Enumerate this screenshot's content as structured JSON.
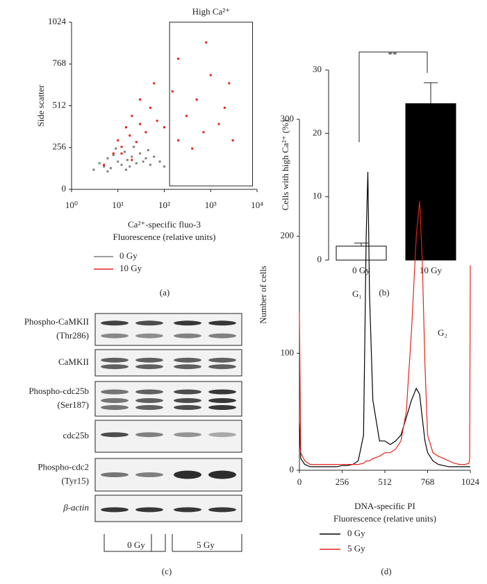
{
  "chart_data": [
    {
      "type": "scatter",
      "label": "(a)",
      "annotation": "High Ca²⁺",
      "xlabel": [
        "Ca²⁺-specific fluo-3",
        "Fluorescence (relative units)"
      ],
      "ylabel": "Side scatter",
      "xscale": "log",
      "xlim": [
        1,
        10000
      ],
      "xticks": [
        {
          "value": 1,
          "label": "10⁰"
        },
        {
          "value": 10,
          "label": "10¹"
        },
        {
          "value": 100,
          "label": "10²"
        },
        {
          "value": 1000,
          "label": "10³"
        },
        {
          "value": 10000,
          "label": "10⁴"
        }
      ],
      "ylim": [
        0,
        1024
      ],
      "yticks": [
        0,
        256,
        512,
        768,
        1024
      ],
      "gate": {
        "xlim": [
          130,
          8000
        ],
        "ylim": [
          21,
          1024
        ]
      },
      "series": [
        {
          "name": "0 Gy",
          "color": "#7f7f7f",
          "x": [
            3,
            4,
            5,
            6,
            7,
            8,
            10,
            12,
            14,
            16,
            18,
            20,
            25,
            30,
            35,
            40,
            50,
            60,
            80,
            100,
            6,
            9,
            15,
            22,
            45
          ],
          "values": [
            120,
            160,
            140,
            190,
            130,
            210,
            170,
            150,
            230,
            180,
            140,
            200,
            160,
            220,
            170,
            190,
            150,
            200,
            170,
            140,
            110,
            250,
            120,
            260,
            240
          ]
        },
        {
          "name": "10 Gy",
          "color": "#e3231c",
          "x": [
            5,
            8,
            10,
            12,
            15,
            18,
            20,
            25,
            30,
            40,
            50,
            70,
            100,
            150,
            200,
            300,
            500,
            700,
            1000,
            1500,
            2000,
            3000,
            200,
            400,
            800,
            60,
            30,
            12,
            20,
            2500
          ],
          "values": [
            150,
            220,
            300,
            260,
            380,
            330,
            450,
            290,
            400,
            350,
            500,
            420,
            380,
            600,
            300,
            450,
            550,
            350,
            700,
            400,
            500,
            300,
            800,
            250,
            900,
            650,
            550,
            220,
            180,
            650
          ]
        }
      ]
    },
    {
      "type": "bar",
      "label": "(b)",
      "ylabel": "Cells with high Ca²⁺ (%)",
      "annotation": "**",
      "categories": [
        "0 Gy",
        "10 Gy"
      ],
      "values": [
        2.2,
        24.7
      ],
      "errors": [
        0.5,
        3.3
      ],
      "colors": [
        "#ffffff",
        "#000000"
      ],
      "ylim": [
        0,
        30
      ],
      "yticks": [
        0,
        10,
        20,
        30
      ]
    },
    {
      "type": "line",
      "label": "(d)",
      "xlabel": [
        "DNA-specific PI",
        "Fluorescence (relative units)"
      ],
      "ylabel": "Number of cells",
      "annotations": [
        "G₁",
        "G₂"
      ],
      "x": [
        0,
        8,
        32,
        64,
        96,
        128,
        160,
        192,
        224,
        256,
        288,
        320,
        352,
        384,
        400,
        410,
        420,
        440,
        480,
        512,
        544,
        576,
        608,
        640,
        672,
        700,
        720,
        736,
        752,
        768,
        800,
        832,
        864,
        896,
        928,
        960,
        992,
        1016,
        1020,
        1024
      ],
      "xlim": [
        0,
        1024
      ],
      "xticks": [
        0,
        256,
        512,
        768,
        1024
      ],
      "ylim": [
        0,
        300
      ],
      "yticks": [
        0,
        100,
        200,
        300
      ],
      "series": [
        {
          "name": "0 Gy",
          "color": "#000000",
          "values": [
            40,
            10,
            5,
            3,
            3,
            3,
            3,
            3,
            3,
            4,
            4,
            5,
            8,
            30,
            200,
            255,
            150,
            60,
            25,
            25,
            22,
            25,
            30,
            45,
            60,
            70,
            65,
            45,
            25,
            15,
            8,
            5,
            4,
            3,
            3,
            3,
            3,
            3,
            3,
            3
          ]
        },
        {
          "name": "5 Gy",
          "color": "#e3231c",
          "values": [
            135,
            15,
            8,
            5,
            5,
            5,
            5,
            5,
            5,
            5,
            5,
            5,
            5,
            6,
            8,
            8,
            8,
            10,
            12,
            15,
            15,
            18,
            25,
            50,
            120,
            200,
            230,
            180,
            90,
            30,
            15,
            12,
            10,
            8,
            6,
            5,
            5,
            6,
            10,
            175
          ]
        }
      ]
    }
  ],
  "blot": {
    "label": "(c)",
    "rows": [
      [
        "Phospho-CaMKII",
        "(Thr286)"
      ],
      [
        "CaMKII"
      ],
      [
        "Phospho-cdc25b",
        "(Ser187)"
      ],
      [
        "cdc25b"
      ],
      [
        "Phospho-cdc2",
        "(Tyr15)"
      ],
      [
        "β-actin"
      ]
    ],
    "groups": [
      "0 Gy",
      "5 Gy"
    ]
  }
}
